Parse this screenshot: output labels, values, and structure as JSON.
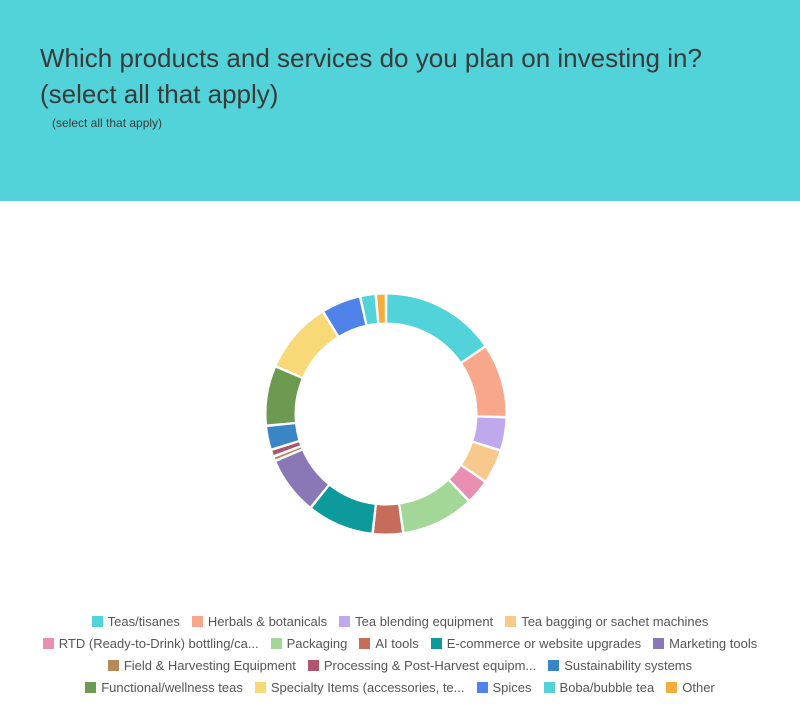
{
  "header": {
    "title": "Which products and services do you plan on investing in? (select all that apply)",
    "subtitle": "(select all that apply)"
  },
  "legend": {
    "rows": [
      [
        {
          "label": "Teas/tisanes",
          "color": "#52d3d9"
        },
        {
          "label": "Herbals & botanicals",
          "color": "#f9a78a"
        },
        {
          "label": "Tea blending equipment",
          "color": "#bfa9ec"
        },
        {
          "label": "Tea bagging or sachet machines",
          "color": "#f7c98c"
        }
      ],
      [
        {
          "label": "RTD (Ready-to-Drink) bottling/ca...",
          "color": "#e98fb2"
        },
        {
          "label": "Packaging",
          "color": "#a3d798"
        },
        {
          "label": "AI tools",
          "color": "#c76b5a"
        },
        {
          "label": "E-commerce or website upgrades",
          "color": "#0d9a9c"
        },
        {
          "label": "Marketing tools",
          "color": "#8a78b6"
        }
      ],
      [
        {
          "label": "Field & Harvesting Equipment",
          "color": "#b58a5a"
        },
        {
          "label": "Processing & Post-Harvest equipm...",
          "color": "#b05570"
        },
        {
          "label": "Sustainability systems",
          "color": "#3a86c4"
        }
      ],
      [
        {
          "label": "Functional/wellness teas",
          "color": "#6b9a50"
        },
        {
          "label": "Specialty Items (accessories, te...",
          "color": "#f8d877"
        },
        {
          "label": "Spices",
          "color": "#4f83ea"
        },
        {
          "label": "Boba/bubble tea",
          "color": "#52d3d9"
        },
        {
          "label": "Other",
          "color": "#f3ad3c"
        }
      ]
    ]
  },
  "chart_data": {
    "type": "pie",
    "title": "Which products and services do you plan on investing in? (select all that apply)",
    "subtitle": "(select all that apply)",
    "style": "donut",
    "categories": [
      "Teas/tisanes",
      "Herbals & botanicals",
      "Tea blending equipment",
      "Tea bagging or sachet machines",
      "RTD (Ready-to-Drink) bottling/ca...",
      "Packaging",
      "AI tools",
      "E-commerce or website upgrades",
      "Marketing tools",
      "Field & Harvesting Equipment",
      "Processing & Post-Harvest equipm...",
      "Sustainability systems",
      "Functional/wellness teas",
      "Specialty Items (accessories, te...",
      "Spices",
      "Boba/bubble tea",
      "Other"
    ],
    "values": [
      14.8,
      9.5,
      4.3,
      4.4,
      3.2,
      9.4,
      3.9,
      8.6,
      7.5,
      0.6,
      0.9,
      3.1,
      7.7,
      9.3,
      5.1,
      2.0,
      1.3
    ],
    "colors": [
      "#52d3d9",
      "#f9a78a",
      "#bfa9ec",
      "#f7c98c",
      "#e98fb2",
      "#a3d798",
      "#c76b5a",
      "#0d9a9c",
      "#8a78b6",
      "#b58a5a",
      "#b05570",
      "#3a86c4",
      "#6b9a50",
      "#f8d877",
      "#4f83ea",
      "#52d3d9",
      "#f3ad3c"
    ],
    "legend_position": "bottom"
  }
}
